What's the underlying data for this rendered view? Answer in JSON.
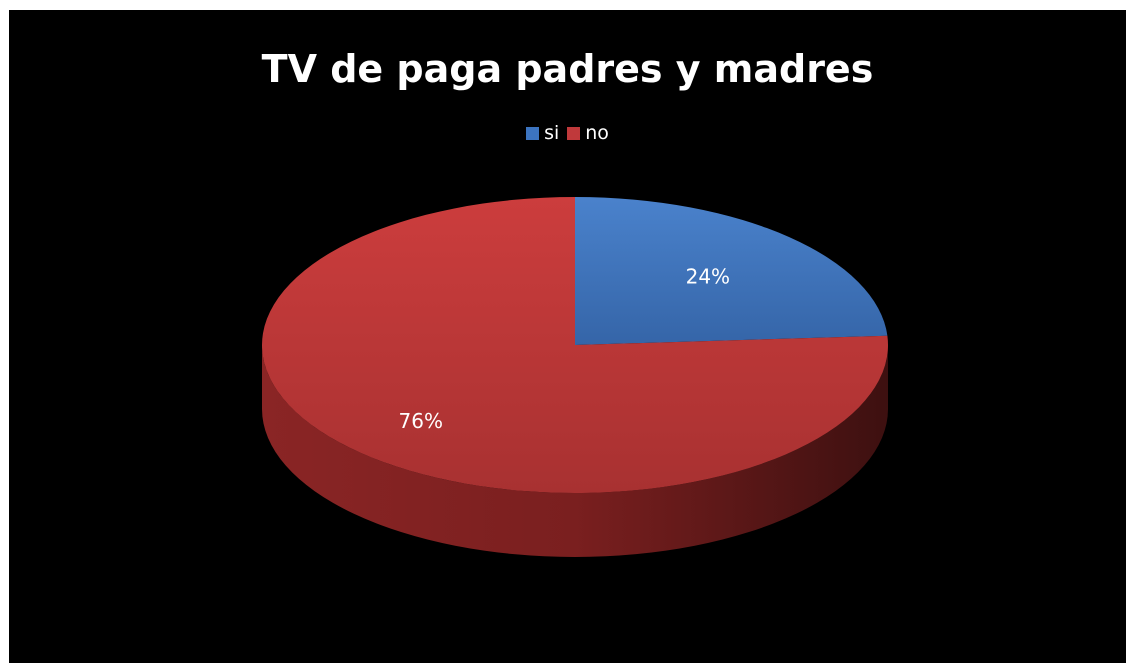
{
  "chart_data": {
    "type": "pie",
    "title": "TV de paga padres y madres",
    "categories": [
      "si",
      "no"
    ],
    "values": [
      24,
      76
    ],
    "data_labels": [
      "24%",
      "76%"
    ],
    "colors": [
      "#3c74c0",
      "#c0393b"
    ],
    "legend_position": "top",
    "style": "3d"
  }
}
